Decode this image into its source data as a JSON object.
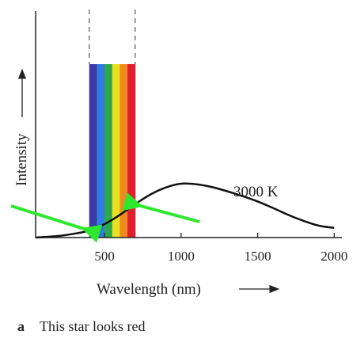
{
  "chart_data": {
    "type": "line",
    "xlabel": "Wavelength (nm)",
    "ylabel": "Intensity",
    "xlim": [
      50,
      2050
    ],
    "x_ticks": [
      500,
      1000,
      1500,
      2000
    ],
    "series": [
      {
        "name": "3000 K",
        "x": [
          50,
          200,
          300,
          400,
          500,
          600,
          700,
          800,
          900,
          1000,
          1100,
          1200,
          1300,
          1400,
          1500,
          1600,
          1700,
          1800,
          1900,
          2000
        ],
        "y": [
          0.0,
          0.03,
          0.07,
          0.13,
          0.25,
          0.42,
          0.62,
          0.8,
          0.93,
          1.0,
          0.99,
          0.94,
          0.86,
          0.77,
          0.67,
          0.55,
          0.42,
          0.31,
          0.22,
          0.18
        ]
      }
    ],
    "visible_band": {
      "from": 400,
      "to": 700
    },
    "spectrum_colors": [
      "#3a3aa8",
      "#2f7de0",
      "#2fa84a",
      "#e8e020",
      "#f08a20",
      "#e02030"
    ],
    "arrow_color": "#2ee82e",
    "curve_color": "#111111"
  },
  "caption": {
    "letter": "a",
    "text": "This star looks red"
  }
}
